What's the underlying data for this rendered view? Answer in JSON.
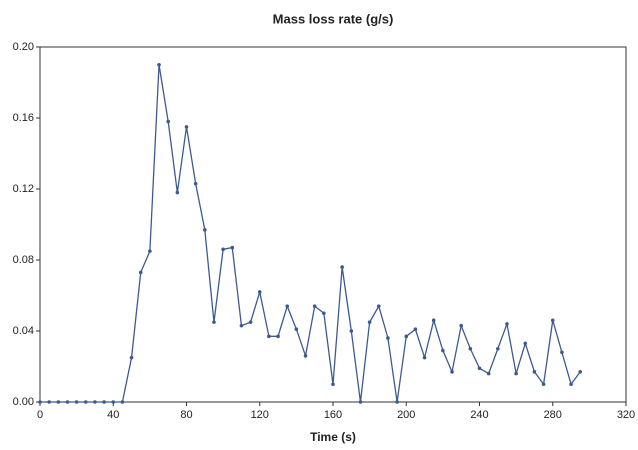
{
  "chart_data": {
    "type": "line",
    "title": "Mass loss rate (g/s)",
    "x_label": "Time (s)",
    "x": [
      0,
      5,
      10,
      15,
      20,
      25,
      30,
      35,
      40,
      45,
      50,
      55,
      60,
      65,
      70,
      75,
      80,
      85,
      90,
      95,
      100,
      105,
      110,
      115,
      120,
      125,
      130,
      135,
      140,
      145,
      150,
      155,
      160,
      165,
      170,
      175,
      180,
      185,
      190,
      195,
      200,
      205,
      210,
      215,
      220,
      225,
      230,
      235,
      240,
      245,
      250,
      255,
      260,
      265,
      270,
      275,
      280,
      285,
      290,
      295
    ],
    "series": [
      {
        "name": "Mass loss rate",
        "color": "#3d5a8f",
        "values": [
          0,
          0,
          0,
          0,
          0,
          0,
          0,
          0,
          0,
          0,
          0.025,
          0.073,
          0.085,
          0.19,
          0.158,
          0.118,
          0.155,
          0.123,
          0.097,
          0.045,
          0.086,
          0.087,
          0.043,
          0.045,
          0.062,
          0.037,
          0.037,
          0.054,
          0.041,
          0.026,
          0.054,
          0.05,
          0.01,
          0.076,
          0.04,
          0,
          0.045,
          0.054,
          0.036,
          0,
          0.037,
          0.041,
          0.025,
          0.046,
          0.029,
          0.017,
          0.043,
          0.03,
          0.019,
          0.016,
          0.03,
          0.044,
          0.016,
          0.033,
          0.017,
          0.01,
          0.046,
          0.028,
          0.01,
          0.017
        ]
      }
    ],
    "xlim": [
      0,
      320
    ],
    "xticks": [
      0,
      40,
      80,
      120,
      160,
      200,
      240,
      280,
      320
    ],
    "ylim": [
      0,
      0.2
    ],
    "yticks": [
      {
        "value": 0,
        "label": "0.00"
      },
      {
        "value": 0.04,
        "label": "0.04"
      },
      {
        "value": 0.08,
        "label": "0.08"
      },
      {
        "value": 0.12,
        "label": "0.12"
      },
      {
        "value": 0.16,
        "label": "0.16"
      },
      {
        "value": 0.2,
        "label": "0.20"
      }
    ],
    "grid": false
  }
}
